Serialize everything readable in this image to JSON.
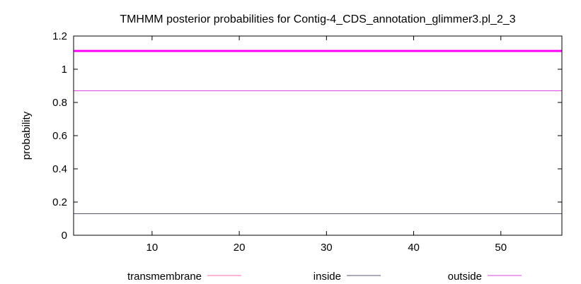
{
  "chart_data": {
    "type": "line",
    "title": "TMHMM posterior probabilities for Contig-4_CDS_annotation_glimmer3.pl_2_3",
    "xlabel": "",
    "ylabel": "probability",
    "xlim": [
      1,
      57
    ],
    "ylim": [
      0,
      1.2
    ],
    "x_ticks": [
      10,
      20,
      30,
      40,
      50
    ],
    "x_tick_labels": [
      "10",
      "20",
      "30",
      "40",
      "50"
    ],
    "y_ticks": [
      0,
      0.2,
      0.4,
      0.6,
      0.8,
      1,
      1.2
    ],
    "y_tick_labels": [
      "0",
      "0.2",
      "0.4",
      "0.6",
      "0.8",
      "1",
      "1.2"
    ],
    "grid": false,
    "legend_position": "bottom",
    "hline": {
      "y": 1.11,
      "color": "#ff00ff"
    },
    "series": [
      {
        "name": "transmembrane",
        "color": "#ff66aa",
        "x": [
          1,
          57
        ],
        "values": [
          0,
          0
        ]
      },
      {
        "name": "inside",
        "color": "#555577",
        "x": [
          1,
          57
        ],
        "values": [
          0.13,
          0.13
        ]
      },
      {
        "name": "outside",
        "color": "#dd44dd",
        "x": [
          1,
          57
        ],
        "values": [
          0.87,
          0.87
        ]
      }
    ]
  }
}
